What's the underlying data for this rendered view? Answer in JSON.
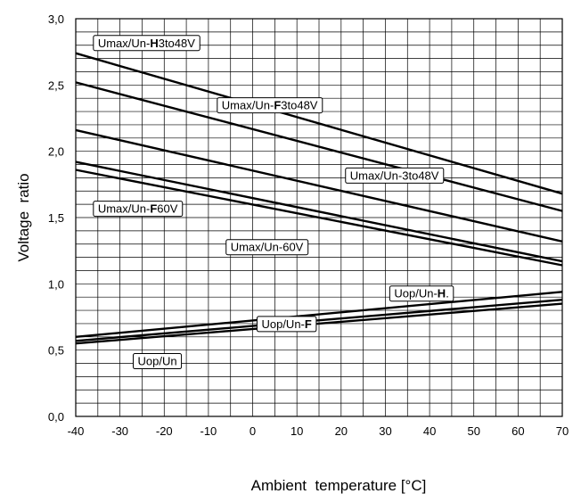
{
  "chart_data": {
    "type": "line",
    "title": "",
    "xlabel": "Ambient  temperature [°C]",
    "ylabel": "Voltage  ratio",
    "xlim": [
      -40,
      70
    ],
    "ylim": [
      0,
      3
    ],
    "grid": true,
    "x_ticks": [
      -40,
      -30,
      -20,
      -10,
      0,
      10,
      20,
      30,
      40,
      50,
      60,
      70
    ],
    "x_tick_labels": [
      "-40",
      "-30",
      "-20",
      "-10",
      "0",
      "10",
      "20",
      "30",
      "40",
      "50",
      "60",
      "70"
    ],
    "y_ticks": [
      0,
      0.5,
      1,
      1.5,
      2,
      2.5,
      3
    ],
    "y_tick_labels": [
      "0,0",
      "0,5",
      "1,0",
      "1,5",
      "2,0",
      "2,5",
      "3,0"
    ],
    "x_minor_step": 5,
    "y_minor_step": 0.1,
    "series": [
      {
        "name": "Umax/Un-H3to48V",
        "label_parts": [
          {
            "t": "Umax/Un-",
            "b": false
          },
          {
            "t": "H",
            "b": true
          },
          {
            "t": "3to48V",
            "b": false
          }
        ],
        "label_at": [
          -35,
          2.82
        ],
        "x": [
          -40,
          70
        ],
        "y": [
          2.74,
          1.68
        ]
      },
      {
        "name": "Umax/Un-F3to48V",
        "label_parts": [
          {
            "t": "Umax/Un-",
            "b": false
          },
          {
            "t": "F",
            "b": true
          },
          {
            "t": "3to48V",
            "b": false
          }
        ],
        "label_at": [
          -7,
          2.35
        ],
        "x": [
          -40,
          70
        ],
        "y": [
          2.52,
          1.55
        ]
      },
      {
        "name": "Umax/Un-3to48V",
        "label_parts": [
          {
            "t": "Umax/Un-3to48V",
            "b": false
          }
        ],
        "label_at": [
          22,
          1.82
        ],
        "x": [
          -40,
          70
        ],
        "y": [
          2.16,
          1.32
        ]
      },
      {
        "name": "Umax/Un-F60V",
        "label_parts": [
          {
            "t": "Umax/Un-",
            "b": false
          },
          {
            "t": "F",
            "b": true
          },
          {
            "t": "60V",
            "b": false
          }
        ],
        "label_at": [
          -35,
          1.57
        ],
        "x": [
          -40,
          70
        ],
        "y": [
          1.92,
          1.17
        ]
      },
      {
        "name": "Umax/Un-60V",
        "label_parts": [
          {
            "t": "Umax/Un-60V",
            "b": false
          }
        ],
        "label_at": [
          -5,
          1.28
        ],
        "x": [
          -40,
          70
        ],
        "y": [
          1.86,
          1.14
        ]
      },
      {
        "name": "Uop/Un-H.",
        "label_parts": [
          {
            "t": "Uop/Un-",
            "b": false
          },
          {
            "t": "H",
            "b": true
          },
          {
            "t": ".",
            "b": false
          }
        ],
        "label_at": [
          32,
          0.93
        ],
        "x": [
          -40,
          70
        ],
        "y": [
          0.6,
          0.94
        ]
      },
      {
        "name": "Uop/Un-F",
        "label_parts": [
          {
            "t": "Uop/Un-",
            "b": false
          },
          {
            "t": "F",
            "b": true
          }
        ],
        "label_at": [
          2,
          0.7
        ],
        "x": [
          -40,
          70
        ],
        "y": [
          0.57,
          0.88
        ]
      },
      {
        "name": "Uop/Un",
        "label_parts": [
          {
            "t": "Uop/Un",
            "b": false
          }
        ],
        "label_at": [
          -26,
          0.42
        ],
        "x": [
          -40,
          70
        ],
        "y": [
          0.55,
          0.85
        ]
      }
    ]
  }
}
